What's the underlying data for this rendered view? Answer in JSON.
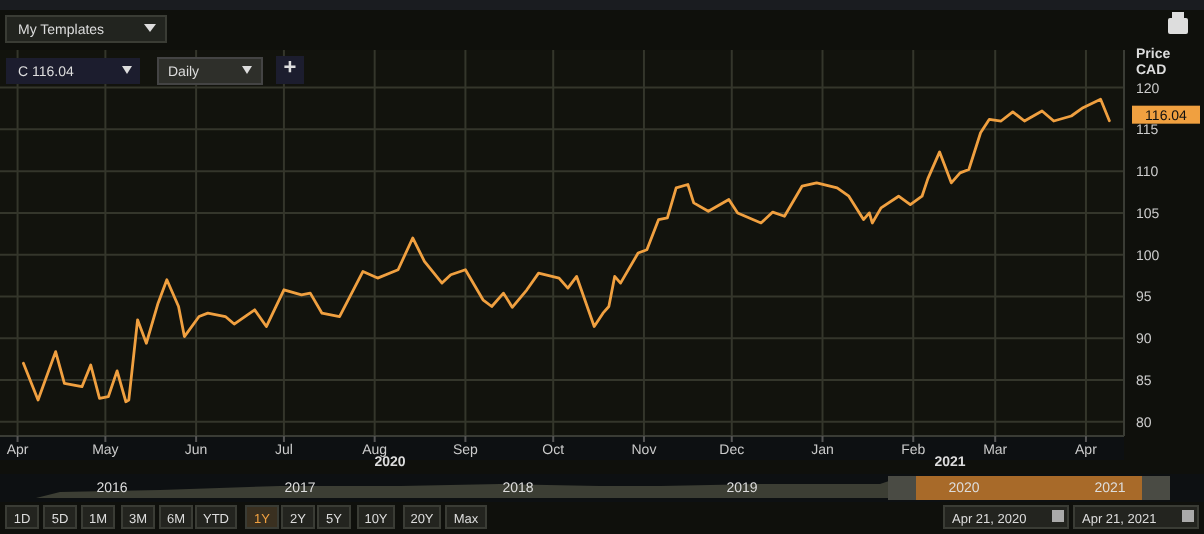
{
  "chart_data": {
    "type": "line",
    "ylabel": "Price CAD",
    "x": [
      "2020-04-08",
      "2020-04-13",
      "2020-04-19",
      "2020-04-22",
      "2020-04-28",
      "2020-05-01",
      "2020-05-04",
      "2020-05-07",
      "2020-05-10",
      "2020-05-13",
      "2020-05-14",
      "2020-05-17",
      "2020-05-20",
      "2020-05-24",
      "2020-05-27",
      "2020-05-31",
      "2020-06-02",
      "2020-06-07",
      "2020-06-10",
      "2020-06-16",
      "2020-06-19",
      "2020-06-26",
      "2020-06-30",
      "2020-07-06",
      "2020-07-12",
      "2020-07-15",
      "2020-07-19",
      "2020-07-25",
      "2020-08-02",
      "2020-08-07",
      "2020-08-14",
      "2020-08-19",
      "2020-08-23",
      "2020-08-29",
      "2020-09-01",
      "2020-09-06",
      "2020-09-12",
      "2020-09-15",
      "2020-09-19",
      "2020-09-22",
      "2020-09-27",
      "2020-10-01",
      "2020-10-08",
      "2020-10-11",
      "2020-10-14",
      "2020-10-20",
      "2020-10-23",
      "2020-10-25",
      "2020-10-27",
      "2020-10-29",
      "2020-11-04",
      "2020-11-07",
      "2020-11-11",
      "2020-11-14",
      "2020-11-17",
      "2020-11-21",
      "2020-11-23",
      "2020-11-28",
      "2020-12-05",
      "2020-12-08",
      "2020-12-16",
      "2020-12-20",
      "2020-12-24",
      "2020-12-30",
      "2021-01-04",
      "2021-01-11",
      "2021-01-15",
      "2021-01-20",
      "2021-01-22",
      "2021-01-23",
      "2021-01-26",
      "2021-02-01",
      "2021-02-05",
      "2021-02-09",
      "2021-02-11",
      "2021-02-15",
      "2021-02-19",
      "2021-02-22",
      "2021-02-25",
      "2021-03-01",
      "2021-03-04",
      "2021-03-08",
      "2021-03-12",
      "2021-03-16",
      "2021-03-22",
      "2021-03-26",
      "2021-04-01",
      "2021-04-05",
      "2021-04-11",
      "2021-04-14"
    ],
    "series": [
      {
        "color": "#f0a040",
        "values": [
          87.0,
          82.6,
          88.4,
          84.6,
          84.2,
          86.8,
          82.8,
          83.0,
          86.1,
          82.4,
          82.6,
          92.2,
          89.4,
          94.2,
          97.0,
          93.8,
          90.2,
          92.6,
          93.0,
          92.6,
          91.7,
          93.4,
          91.4,
          95.8,
          95.2,
          95.4,
          93.0,
          92.6,
          98.0,
          97.2,
          98.2,
          102.0,
          99.2,
          96.6,
          97.6,
          98.2,
          94.6,
          93.8,
          95.4,
          93.7,
          95.8,
          97.8,
          97.2,
          96.0,
          97.4,
          91.4,
          93.0,
          93.8,
          97.4,
          96.6,
          100.2,
          100.6,
          104.2,
          104.4,
          108.0,
          108.4,
          106.2,
          105.2,
          106.6,
          105.0,
          103.8,
          105.1,
          104.6,
          108.2,
          108.6,
          108.0,
          107.0,
          104.2,
          105.0,
          103.8,
          105.6,
          107.0,
          106.0,
          107.0,
          109.1,
          112.3,
          108.6,
          109.8,
          110.2,
          114.6,
          116.2,
          116.0,
          117.1,
          116.0,
          117.2,
          116.0,
          116.6,
          117.6,
          118.6,
          116.04
        ]
      }
    ],
    "xlim": [
      "2020-03-31",
      "2021-04-19"
    ],
    "xticks": [
      {
        "value": "2020-04-06",
        "label": "Apr"
      },
      {
        "value": "2020-05-06",
        "label": "May"
      },
      {
        "value": "2020-06-06",
        "label": "Jun"
      },
      {
        "value": "2020-07-06",
        "label": "Jul"
      },
      {
        "value": "2020-08-06",
        "label": "Aug"
      },
      {
        "value": "2020-09-06",
        "label": "Sep"
      },
      {
        "value": "2020-10-06",
        "label": "Oct"
      },
      {
        "value": "2020-11-06",
        "label": "Nov"
      },
      {
        "value": "2020-12-06",
        "label": "Dec"
      },
      {
        "value": "2021-01-06",
        "label": "Jan"
      },
      {
        "value": "2021-02-06",
        "label": "Feb"
      },
      {
        "value": "2021-03-06",
        "label": "Mar"
      },
      {
        "value": "2021-04-06",
        "label": "Apr"
      }
    ],
    "ylim": [
      78.3,
      124.5
    ],
    "yticks": [
      80,
      85,
      90,
      95,
      100,
      105,
      110,
      115,
      120
    ],
    "grid": true,
    "line_style": "solid",
    "annotations": [
      {
        "text": "116.04",
        "x": "2021-04-14",
        "y": 116.04
      },
      "2020",
      "2021",
      "My Templates",
      "C 116.04",
      "Daily",
      "+",
      "2016",
      "2017",
      "2018",
      "2019",
      "2020",
      "2021",
      "1D",
      "5D",
      "1M",
      "3M",
      "6M",
      "YTD",
      "1Y",
      "2Y",
      "5Y",
      "10Y",
      "20Y",
      "Max",
      "Apr 21, 2020",
      "Apr 21, 2021"
    ]
  }
}
